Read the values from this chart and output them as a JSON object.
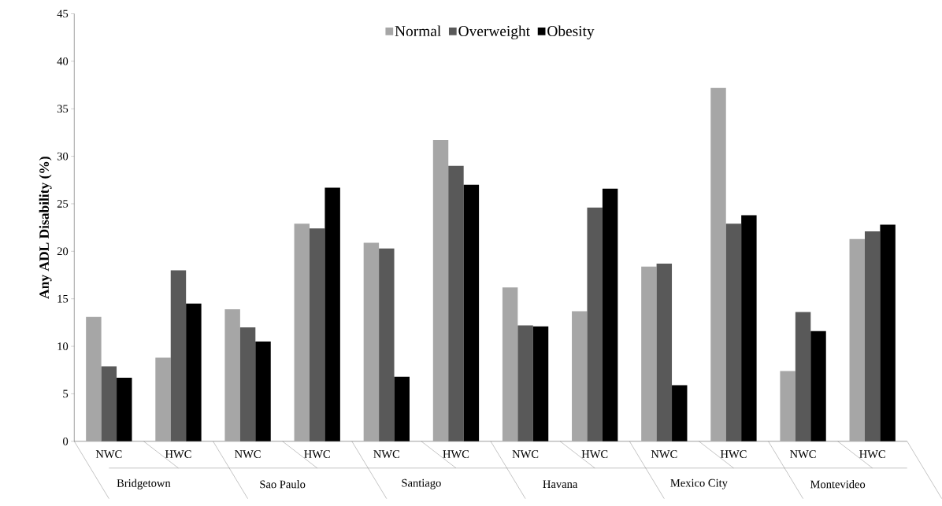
{
  "chart_data": {
    "type": "bar",
    "ylabel": "Any ADL Disability (%)",
    "categories": [
      "NWC",
      "HWC",
      "NWC",
      "HWC",
      "NWC",
      "HWC",
      "NWC",
      "HWC",
      "NWC",
      "HWC",
      "NWC",
      "HWC"
    ],
    "annotations": [
      "Bridgetown",
      "Sao Paulo",
      "Santiago",
      "Havana",
      "Mexico City",
      "Montevideo"
    ],
    "series": [
      {
        "name": "Normal",
        "color": "#a6a6a6",
        "values": [
          13.1,
          8.8,
          13.9,
          22.9,
          20.9,
          31.7,
          16.2,
          13.7,
          18.4,
          37.2,
          7.4,
          21.3
        ]
      },
      {
        "name": "Overweight",
        "color": "#595959",
        "values": [
          7.9,
          18.0,
          12.0,
          22.4,
          20.3,
          29.0,
          12.2,
          24.6,
          18.7,
          22.9,
          13.6,
          22.1
        ]
      },
      {
        "name": "Obesity",
        "color": "#000000",
        "values": [
          6.7,
          14.5,
          10.5,
          26.7,
          6.8,
          27.0,
          12.1,
          26.6,
          5.9,
          23.8,
          11.6,
          22.8
        ]
      }
    ],
    "ylim": [
      0,
      45
    ],
    "yticks": [
      0,
      5,
      10,
      15,
      20,
      25,
      30,
      35,
      40,
      45
    ],
    "legend": "top",
    "grid": false
  }
}
